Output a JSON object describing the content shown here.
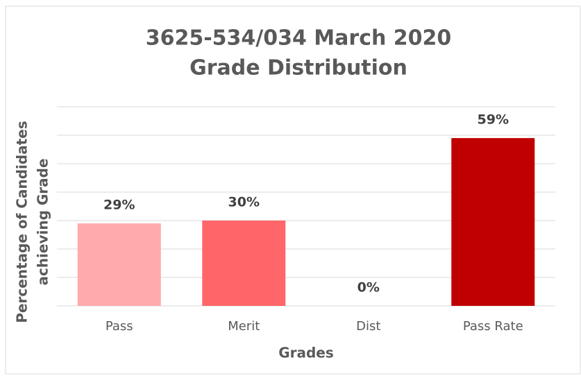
{
  "chart_data": {
    "type": "bar",
    "title": [
      "3625-534/034 March 2020",
      "Grade Distribution"
    ],
    "xlabel": "Grades",
    "ylabel": [
      "Percentage of Candidates",
      "achieving Grade"
    ],
    "categories": [
      "Pass",
      "Merit",
      "Dist",
      "Pass Rate"
    ],
    "values": [
      29,
      30,
      0,
      59
    ],
    "value_labels": [
      "29%",
      "30%",
      "0%",
      "59%"
    ],
    "colors": [
      "#ffaaad",
      "#ff6669",
      "#ff6669",
      "#c00000"
    ],
    "ylim": [
      0,
      70
    ],
    "yticks": [
      0,
      10,
      20,
      30,
      40,
      50,
      60,
      70
    ],
    "grid": true
  }
}
